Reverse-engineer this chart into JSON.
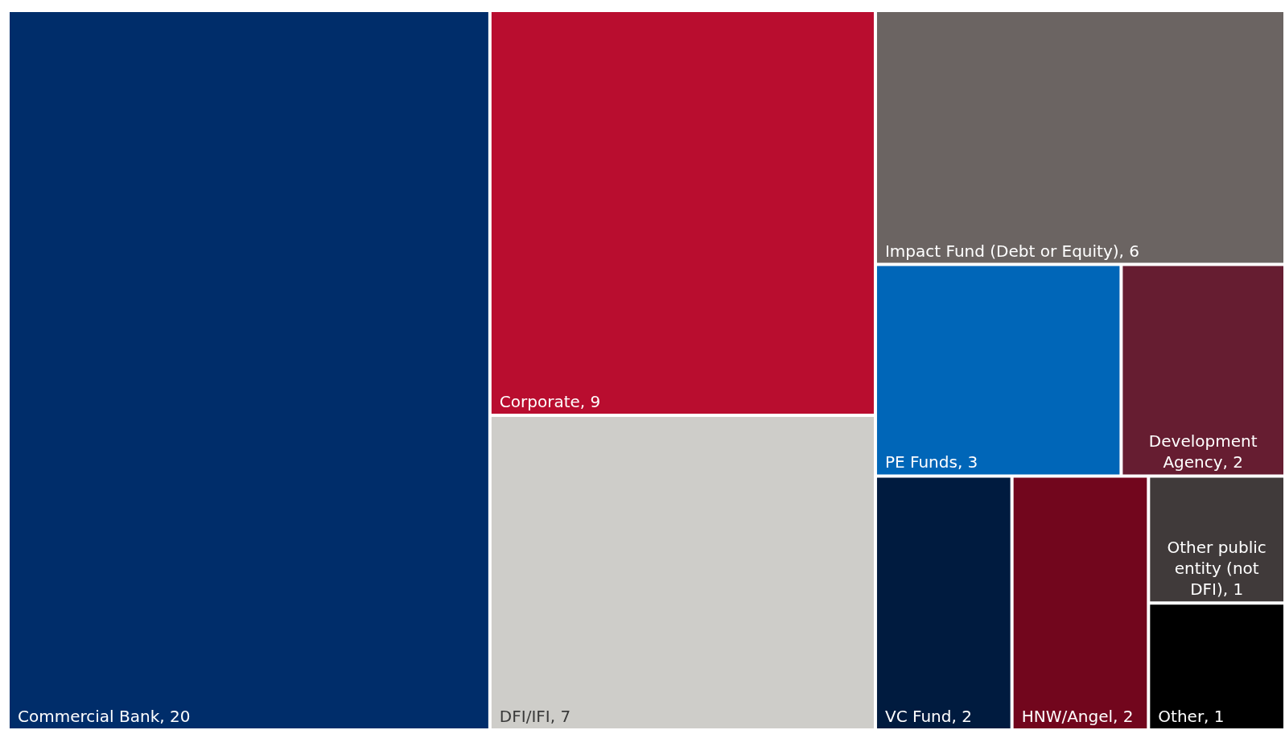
{
  "chart_data": {
    "type": "other",
    "categories": [
      "Commercial Bank",
      "Corporate",
      "DFI/IFI",
      "Impact Fund (Debt or Equity)",
      "PE Funds",
      "Development Agency",
      "VC Fund",
      "HNW/Angel",
      "Other public entity (not DFI)",
      "Other"
    ],
    "values": [
      20,
      9,
      7,
      6,
      3,
      2,
      2,
      2,
      1,
      1
    ],
    "value_labels": [
      ", 20",
      ", 9",
      ", 7",
      ", 6",
      ", 3",
      ", 2",
      ", 2",
      ", 2",
      ", 1",
      ", 1"
    ],
    "colors": [
      "#002d6a",
      "#b90d2f",
      "#cecdc9",
      "#6b6462",
      "#0066b8",
      "#661d31",
      "#001b3f",
      "#72061d",
      "#403a3a",
      "#000000"
    ]
  }
}
